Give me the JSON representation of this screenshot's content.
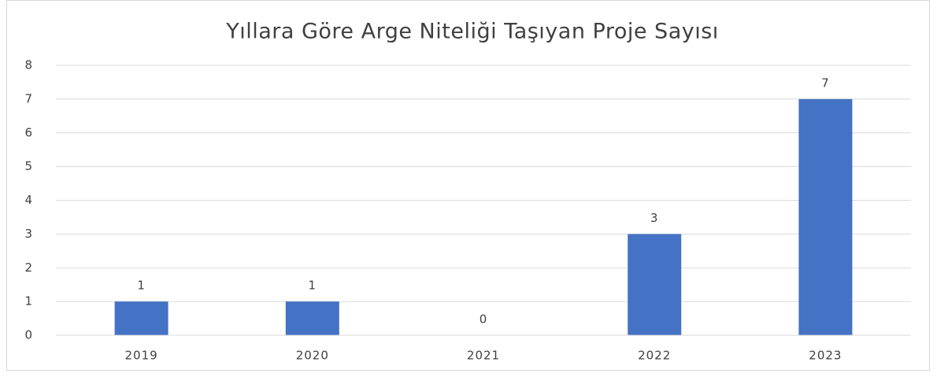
{
  "chart_data": {
    "type": "bar",
    "title": "Yıllara Göre Arge Niteliği Taşıyan Proje Sayısı",
    "categories": [
      "2019",
      "2020",
      "2021",
      "2022",
      "2023"
    ],
    "values": [
      1,
      1,
      0,
      3,
      7
    ],
    "color": "#4472c4",
    "ylim": [
      0,
      8
    ],
    "yticks": [
      0,
      1,
      2,
      3,
      4,
      5,
      6,
      7,
      8
    ],
    "grid": true
  }
}
